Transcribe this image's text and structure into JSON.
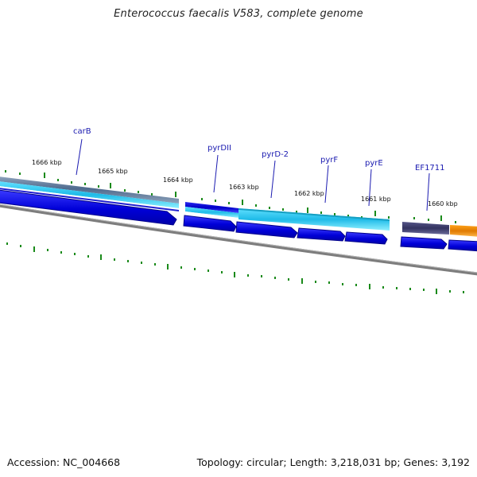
{
  "title": "Enterococcus faecalis V583, complete genome",
  "footer": {
    "accession": "Accession: NC_004668",
    "topology": "Topology: circular; Length: 3,218,031 bp; Genes: 3,192"
  },
  "gene_labels": [
    "carB",
    "pyrDII",
    "pyrD-2",
    "pyrF",
    "pyrE",
    "EF1711"
  ],
  "kbp_labels": [
    "1666 kbp",
    "1665 kbp",
    "1664 kbp",
    "1663 kbp",
    "1662 kbp",
    "1661 kbp",
    "1660 kbp"
  ],
  "colors": {
    "cds_arrow": "#0000dd",
    "cds_outline": "#00009a",
    "gc_light_blue": "#33ccf0",
    "gc_dark_blue": "#1a1ad8",
    "gc_gray_blue": "#5a7090",
    "gc_purple": "#404070",
    "gc_orange": "#f08a00",
    "backbone": "#888888",
    "tick": "#1a8a1a"
  }
}
